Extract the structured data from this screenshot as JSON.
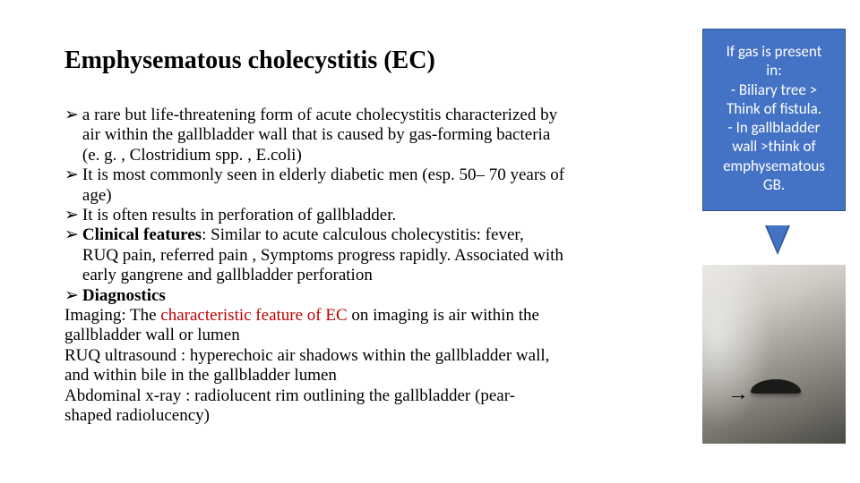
{
  "title": "Emphysematous cholecystitis (EC)",
  "bullets": {
    "b1a": "a rare but life-threatening form of acute cholecystitis characterized by",
    "b1b": "air within the gallbladder wall that is caused by gas-forming bacteria",
    "b1c": "(e. g. , Clostridium spp. , E.coli)",
    "b2a": "It is most commonly seen in elderly diabetic men (esp. 50– 70 years of",
    "b2b": "age)",
    "b3": "It is often results in perforation of gallbladder.",
    "b4_lead": "Clinical features",
    "b4a": ": Similar to acute calculous cholecystitis: fever,",
    "b4b": "RUQ pain, referred pain , Symptoms progress rapidly. Associated with",
    "b4c": "early gangrene and gallbladder perforation",
    "b5": "Diagnostics",
    "img_lead": "Imaging: The ",
    "img_red": "characteristic feature of EC ",
    "img_tail": "on imaging is air within the",
    "img2": "gallbladder wall or lumen",
    "us1": "RUQ ultrasound : hyperechoic air shadows within the gallbladder wall,",
    "us2": "and within bile in the gallbladder lumen",
    "xr1": "Abdominal x-ray : radiolucent rim outlining the gallbladder (pear-",
    "xr2": "shaped radiolucency)"
  },
  "callout": {
    "l1": "If gas is present",
    "l2": "in:",
    "l3": "- Biliary tree >",
    "l4": "Think of fistula.",
    "l5": "- In gallbladder",
    "l6": "wall >think of",
    "l7": "emphysematous",
    "l8": "GB."
  },
  "glyphs": {
    "chevron": "➢",
    "arrow": "→"
  },
  "colors": {
    "callout_fill": "#4472c4",
    "callout_border": "#2f528f",
    "red_text": "#c00000"
  }
}
